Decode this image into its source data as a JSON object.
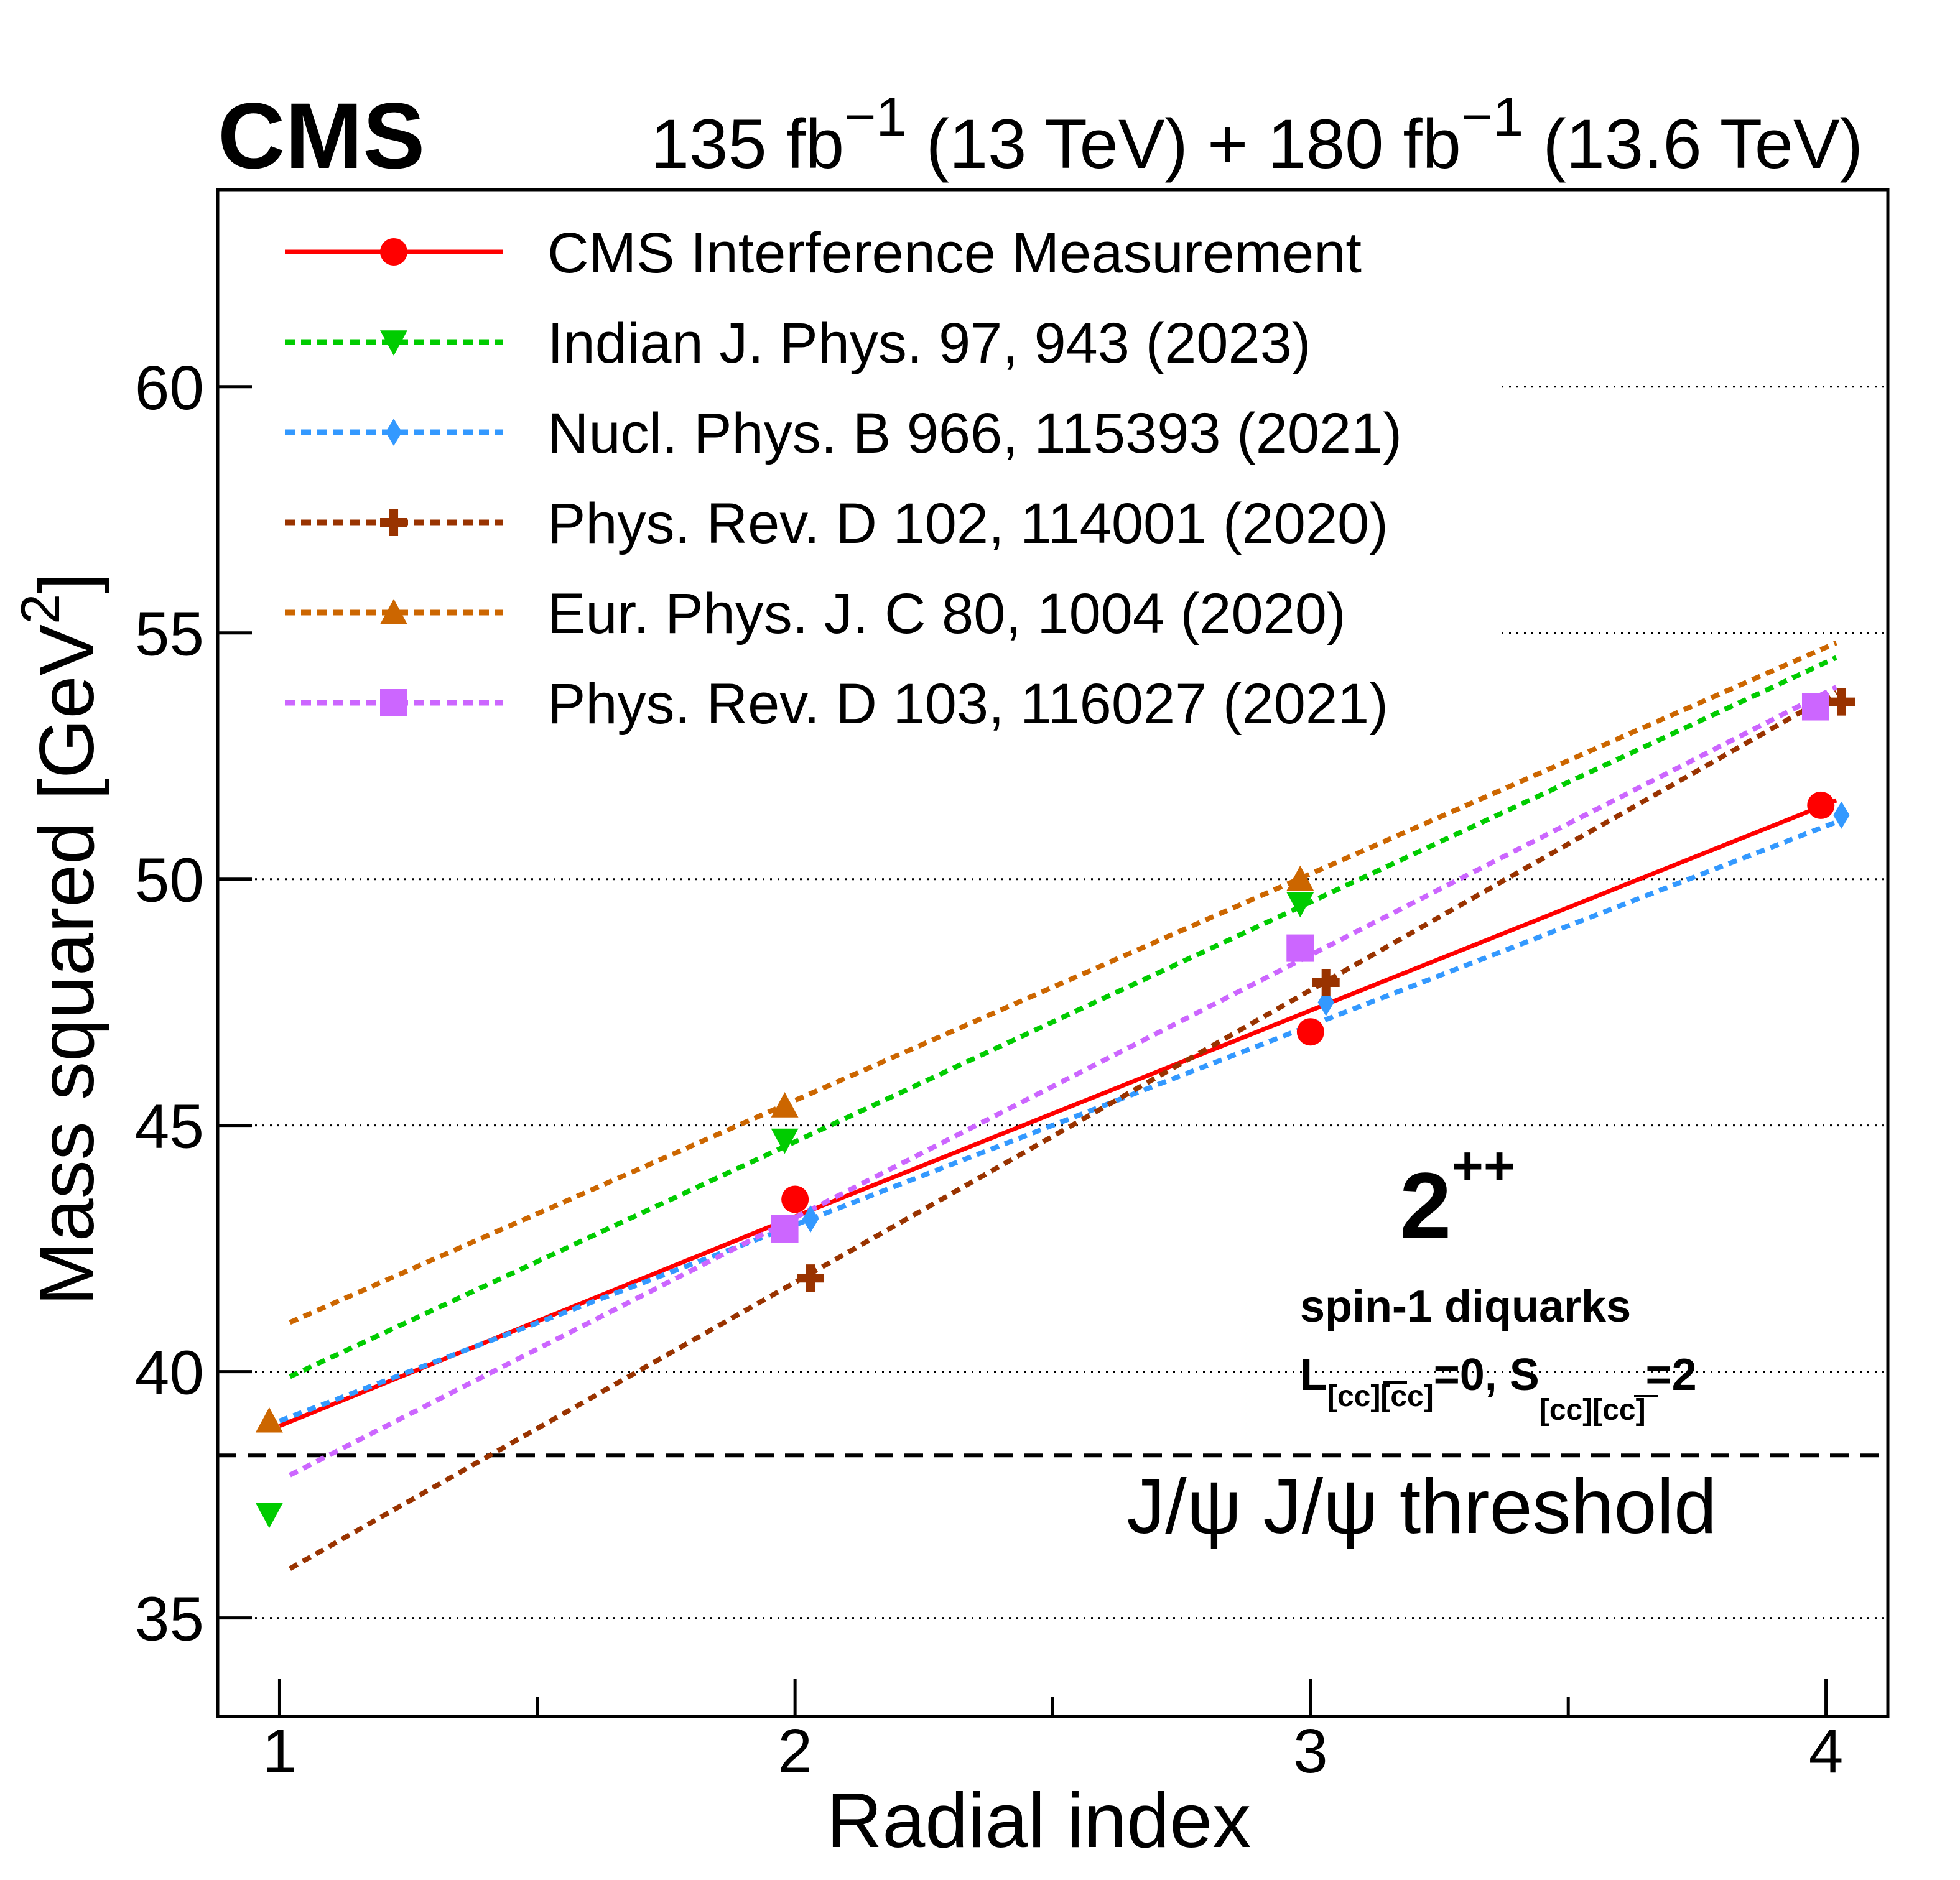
{
  "header": {
    "experiment": "CMS",
    "lumi_1": "135 fb",
    "lumi_sup_1": "−1",
    "lumi_energy_1": " (13 TeV) + 180 fb",
    "lumi_sup_2": "−1",
    "lumi_energy_2": " (13.6 TeV)"
  },
  "annotations": {
    "jpc_value": "2",
    "jpc_sup": "++",
    "diquark_line": "spin-1 diquarks",
    "quantum_L": "L",
    "quantum_sub_1": "[cc][cc]",
    "quantum_mid": "=0, S",
    "quantum_sub_2": "[cc][cc]",
    "quantum_end": "=2",
    "threshold_label": "J/ψ J/ψ threshold"
  },
  "axes": {
    "xlabel": "Radial index",
    "ylabel": "Mass squared [GeV",
    "ylabel_sup": "2",
    "ylabel_end": "]"
  },
  "chart_data": {
    "type": "line",
    "title": "CMS",
    "xlabel": "Radial index",
    "ylabel": "Mass squared [GeV²]",
    "xlim": [
      0.88,
      4.12
    ],
    "ylim": [
      33,
      64
    ],
    "x_ticks": [
      1,
      2,
      3,
      4
    ],
    "x_tick_labels": [
      "1",
      "2",
      "3",
      "4"
    ],
    "y_ticks": [
      35,
      40,
      45,
      50,
      55,
      60
    ],
    "y_tick_labels": [
      "35",
      "40",
      "45",
      "50",
      "55",
      "60"
    ],
    "grid": "dotted horizontal at 35, 40, 45, 50, 55, 60",
    "threshold": {
      "label": "J/ψ J/ψ threshold",
      "y": 38.3
    },
    "legend_position": "top-left",
    "series": [
      {
        "name": "CMS Interference Measurement",
        "color": "#ff0000",
        "line": "solid",
        "marker": "circle",
        "x": [
          2.0,
          3.0,
          3.99
        ],
        "y": [
          43.5,
          46.9,
          51.5
        ],
        "line_x": [
          1.0,
          2.0,
          4.02
        ],
        "line_y": [
          38.9,
          43.15,
          51.6
        ]
      },
      {
        "name": "Indian J. Phys. 97, 943 (2023)",
        "color": "#00cc00",
        "line": "dotted",
        "marker": "triangle-down",
        "x": [
          0.98,
          1.98,
          2.98
        ],
        "y": [
          37.1,
          44.7,
          49.5
        ],
        "line_x": [
          1.02,
          4.02
        ],
        "line_y": [
          39.9,
          54.5
        ]
      },
      {
        "name": "Nucl. Phys. B 966, 115393 (2021)",
        "color": "#3399ff",
        "line": "dotted",
        "marker": "diamond",
        "x": [
          2.03,
          3.03,
          4.03
        ],
        "y": [
          43.1,
          47.5,
          51.3
        ],
        "line_x": [
          1.0,
          2.03,
          4.03
        ],
        "line_y": [
          39.0,
          43.1,
          51.2
        ]
      },
      {
        "name": "Phys. Rev. D 102, 114001 (2020)",
        "color": "#993300",
        "line": "dotted",
        "marker": "cross",
        "x": [
          2.03,
          3.03,
          4.03
        ],
        "y": [
          41.9,
          47.9,
          53.6
        ],
        "line_x": [
          1.02,
          4.02
        ],
        "line_y": [
          36.0,
          53.8
        ]
      },
      {
        "name": "Eur. Phys. J. C 80, 1004 (2020)",
        "color": "#cc6600",
        "line": "dotted",
        "marker": "triangle-up",
        "x": [
          0.98,
          1.98,
          2.98
        ],
        "y": [
          39.0,
          45.4,
          50.0
        ],
        "line_x": [
          1.02,
          4.02
        ],
        "line_y": [
          41.0,
          54.8
        ]
      },
      {
        "name": "Phys. Rev. D 103, 116027 (2021)",
        "color": "#cc66ff",
        "line": "dotted",
        "marker": "square",
        "x": [
          1.98,
          2.98,
          3.98
        ],
        "y": [
          42.9,
          48.6,
          53.5
        ],
        "line_x": [
          1.02,
          4.02
        ],
        "line_y": [
          37.9,
          53.9
        ]
      }
    ]
  }
}
